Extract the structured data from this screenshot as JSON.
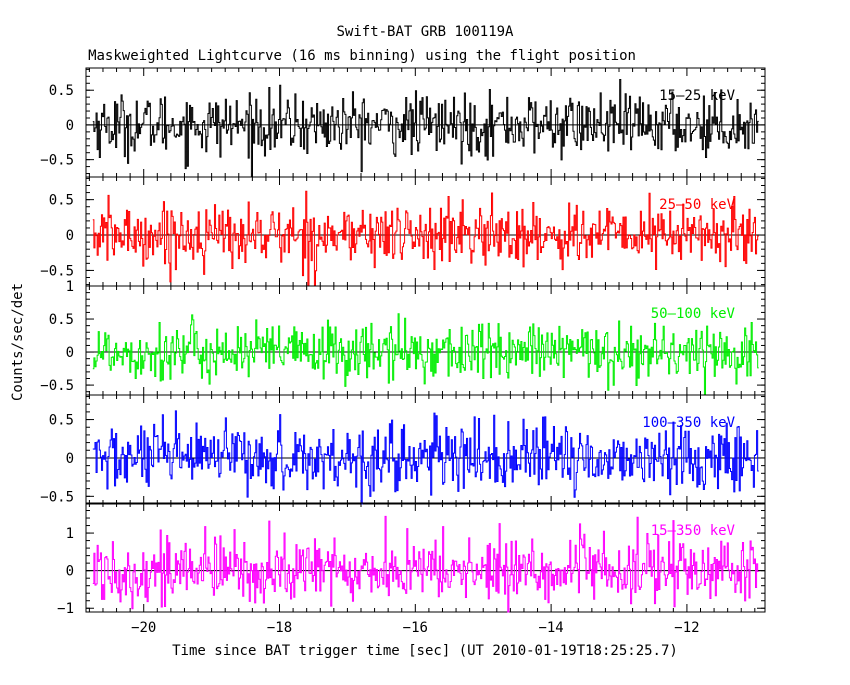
{
  "chart_data": {
    "type": "line",
    "title": "Swift-BAT GRB 100119A",
    "subtitle": "Maskweighted Lightcurve (16 ms binning) using the flight position",
    "xlabel": "Time since BAT trigger time [sec] (UT 2010-01-19T18:25:25.7)",
    "ylabel": "Counts/sec/det",
    "xlim": [
      -20.85,
      -10.85
    ],
    "x_ticks": [
      -20,
      -18,
      -16,
      -14,
      -12
    ],
    "x_tick_labels": [
      "−20",
      "−18",
      "−16",
      "−14",
      "−12"
    ],
    "bin_width_s": 0.016,
    "x_data_range": [
      -20.75,
      -10.95
    ],
    "panels": [
      {
        "band": "15–25 keV",
        "color": "#000000",
        "ylim": [
          -0.75,
          0.82
        ],
        "y_ticks": [
          -0.5,
          0,
          0.5
        ],
        "y_tick_labels": [
          "−0.5",
          "0",
          "0.5"
        ],
        "noise_amplitude": 0.22
      },
      {
        "band": "25–50 keV",
        "color": "#ff0000",
        "ylim": [
          -0.72,
          0.82
        ],
        "y_ticks": [
          -0.5,
          0,
          0.5
        ],
        "y_tick_labels": [
          "−0.5",
          "0",
          "0.5"
        ],
        "noise_amplitude": 0.22
      },
      {
        "band": "50–100 keV",
        "color": "#00ee00",
        "ylim": [
          -0.65,
          1.0
        ],
        "y_ticks": [
          -0.5,
          0,
          0.5,
          1
        ],
        "y_tick_labels": [
          "−0.5",
          "0",
          "0.5",
          "1"
        ],
        "noise_amplitude": 0.22
      },
      {
        "band": "100–350 keV",
        "color": "#0000ff",
        "ylim": [
          -0.6,
          0.82
        ],
        "y_ticks": [
          -0.5,
          0,
          0.5
        ],
        "y_tick_labels": [
          "−0.5",
          "0",
          "0.5"
        ],
        "noise_amplitude": 0.22
      },
      {
        "band": "15–350 keV",
        "color": "#ff00ff",
        "ylim": [
          -1.1,
          1.8
        ],
        "y_ticks": [
          -1,
          0,
          1
        ],
        "y_tick_labels": [
          "−1",
          "0",
          "1"
        ],
        "noise_amplitude": 0.45
      }
    ],
    "grid": false,
    "legend": "none (band label inside each panel, top-right)"
  }
}
